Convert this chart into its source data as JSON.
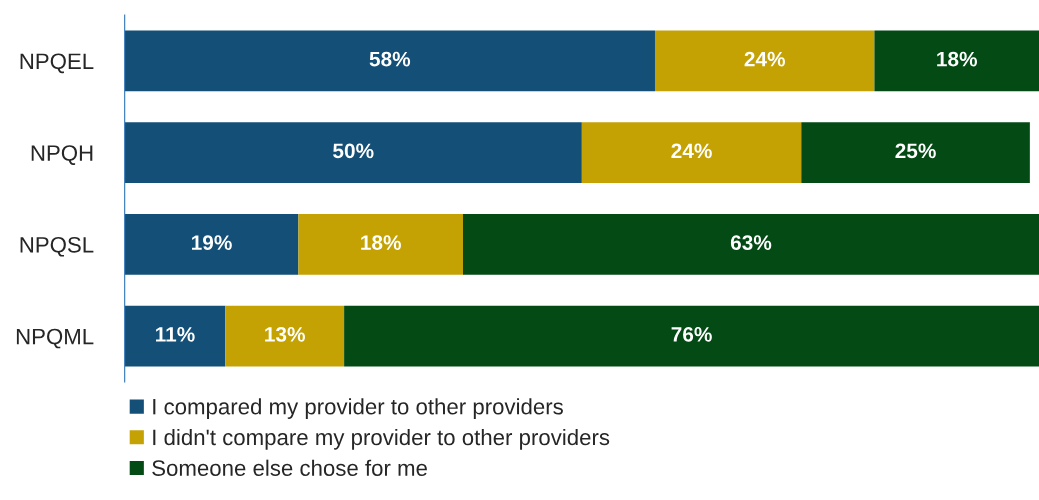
{
  "chart_data": {
    "type": "bar",
    "orientation": "horizontal",
    "stacked": true,
    "legend": "bottom",
    "categories": [
      "NPQEL",
      "NPQH",
      "NPQSL",
      "NPQML"
    ],
    "series": [
      {
        "name": "I compared my provider to other providers",
        "color": "#134f77",
        "values": [
          58,
          50,
          19,
          11
        ],
        "value_labels": [
          "58%",
          "50%",
          "19%",
          "11%"
        ]
      },
      {
        "name": "I didn't compare my provider to other providers",
        "color": "#c4a204",
        "values": [
          24,
          24,
          18,
          13
        ],
        "value_labels": [
          "24%",
          "24%",
          "18%",
          "13%"
        ]
      },
      {
        "name": "Someone else chose for me",
        "color": "#034a14",
        "values": [
          18,
          25,
          63,
          76
        ],
        "value_labels": [
          "18%",
          "25%",
          "63%",
          "76%"
        ]
      }
    ]
  }
}
